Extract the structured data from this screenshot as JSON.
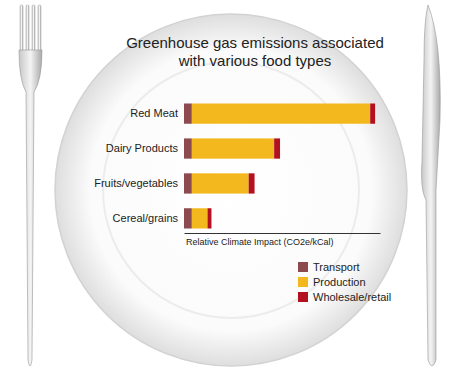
{
  "chart_data": {
    "type": "bar",
    "title": "Greenhouse gas emissions associated with various food types",
    "x_label": "Relative Climate Impact (CO2e/kCal)",
    "categories": [
      "Red Meat",
      "Dairy Products",
      "Fruits/vegetables",
      "Cereal/grains"
    ],
    "series": [
      {
        "name": "Transport",
        "color": "#8c4a4f",
        "values": [
          8,
          8,
          8,
          8
        ]
      },
      {
        "name": "Production",
        "color": "#f2b81d",
        "values": [
          182,
          84,
          58,
          16
        ]
      },
      {
        "name": "Wholesale/retail",
        "color": "#b3111f",
        "values": [
          5,
          6,
          6,
          4
        ]
      }
    ],
    "xlim": [
      0,
      200
    ],
    "xticks": [],
    "orientation": "horizontal",
    "stacked": true,
    "tick_labels": "y",
    "legend": "bottom right"
  }
}
